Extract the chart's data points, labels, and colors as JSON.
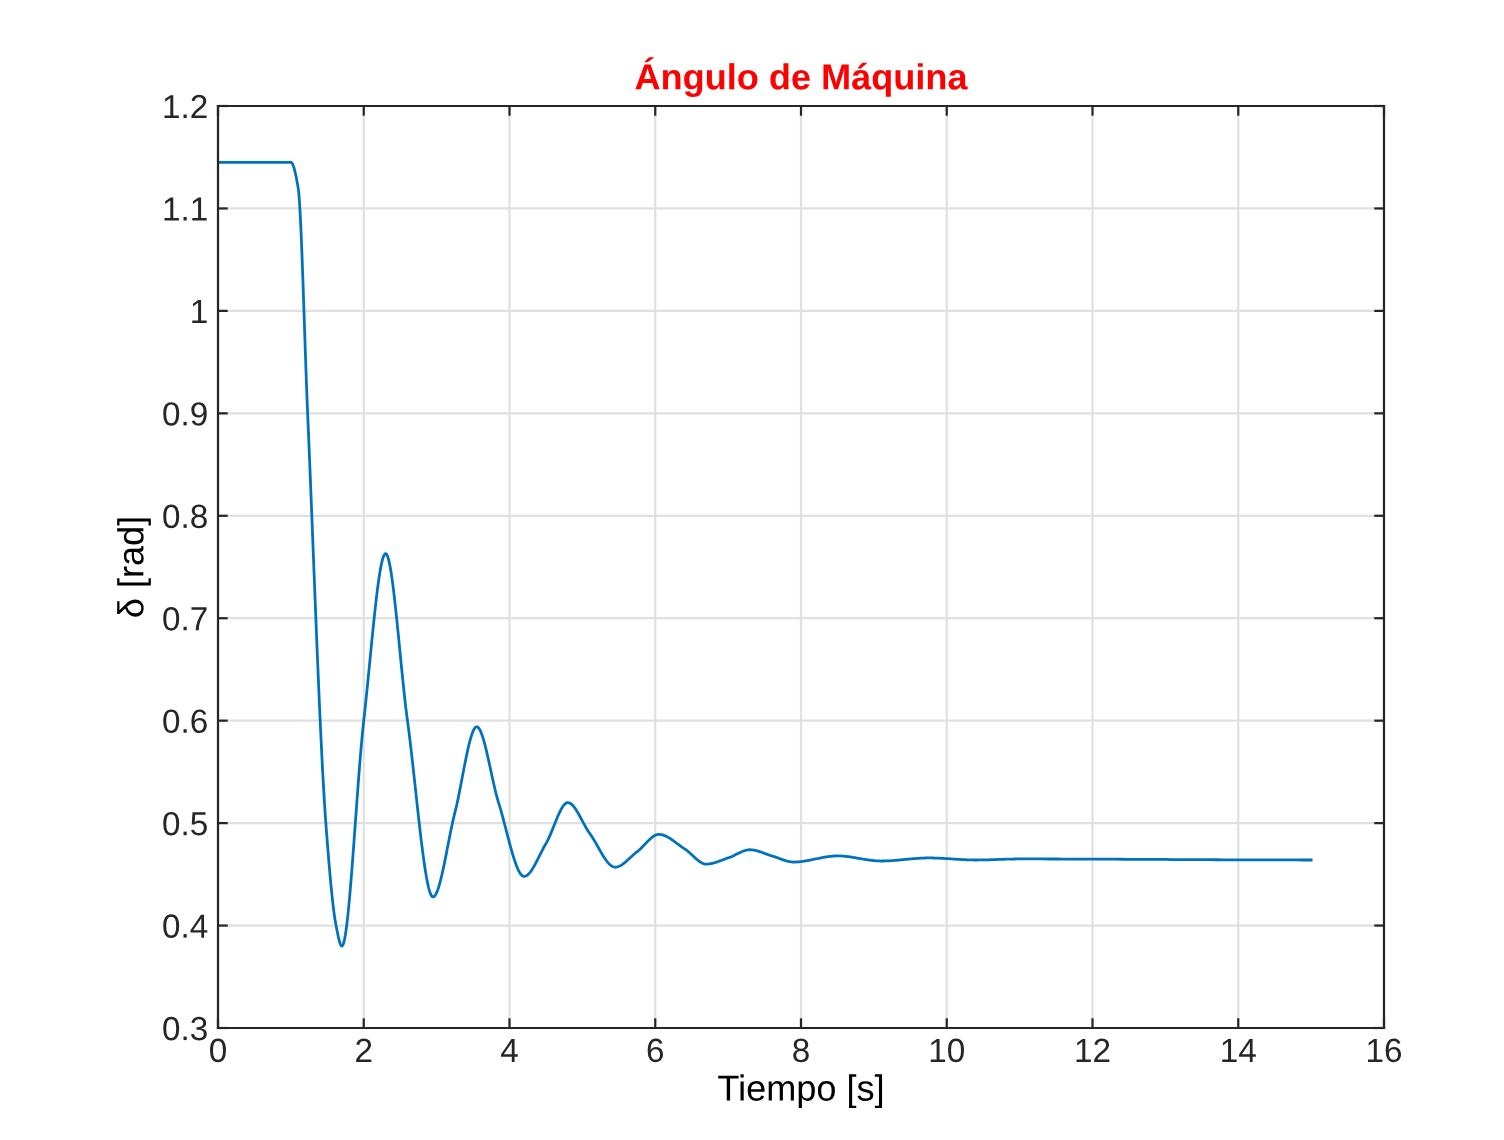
{
  "chart_data": {
    "type": "line",
    "title": "Ángulo de Máquina",
    "xlabel": "Tiempo [s]",
    "ylabel": "δ [rad]",
    "xlim": [
      0,
      16
    ],
    "xticks": [
      0,
      2,
      4,
      6,
      8,
      10,
      12,
      14,
      16
    ],
    "ylim": [
      0.3,
      1.2
    ],
    "yticks": [
      0.3,
      0.4,
      0.5,
      0.6,
      0.7,
      0.8,
      0.9,
      1,
      1.1,
      1.2
    ],
    "grid": true,
    "series": [
      {
        "color": "#0072bd",
        "x": [
          0,
          1.0,
          1.1,
          1.23,
          1.48,
          1.62,
          1.7,
          2.0,
          2.3,
          2.6,
          2.95,
          3.25,
          3.55,
          3.85,
          4.2,
          4.5,
          4.8,
          5.1,
          5.45,
          5.75,
          6.05,
          6.4,
          6.7,
          7.0,
          7.3,
          7.6,
          7.9,
          8.5,
          9.1,
          9.75,
          10.4,
          11,
          15
        ],
        "values": [
          1.145,
          1.145,
          1.12,
          0.9,
          0.5,
          0.4,
          0.38,
          0.6,
          0.763,
          0.6,
          0.428,
          0.51,
          0.594,
          0.52,
          0.448,
          0.48,
          0.52,
          0.49,
          0.457,
          0.472,
          0.489,
          0.475,
          0.46,
          0.466,
          0.474,
          0.468,
          0.462,
          0.468,
          0.463,
          0.466,
          0.464,
          0.465,
          0.464
        ]
      }
    ]
  }
}
